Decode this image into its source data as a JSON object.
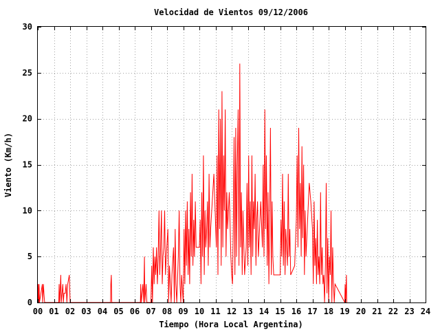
{
  "chart_data": {
    "type": "line",
    "title": "Velocidad de Vientos 09/12/2006",
    "xlabel": "Tiempo (Hora Local Argentina)",
    "ylabel": "Viento (Km/h)",
    "xlim": [
      0,
      24
    ],
    "ylim": [
      0,
      30
    ],
    "x_ticks": [
      "00",
      "01",
      "02",
      "03",
      "04",
      "05",
      "06",
      "07",
      "08",
      "09",
      "10",
      "11",
      "12",
      "13",
      "14",
      "15",
      "16",
      "17",
      "18",
      "19",
      "20",
      "21",
      "22",
      "23",
      "24"
    ],
    "y_ticks": [
      "0",
      "5",
      "10",
      "15",
      "20",
      "25",
      "30"
    ],
    "grid": true,
    "series": [
      {
        "color": "#ff0000",
        "points": [
          [
            0.0,
            0
          ],
          [
            0.02,
            2
          ],
          [
            0.05,
            0
          ],
          [
            0.08,
            2
          ],
          [
            0.1,
            0
          ],
          [
            0.28,
            2
          ],
          [
            0.3,
            0
          ],
          [
            0.35,
            2
          ],
          [
            0.38,
            1
          ],
          [
            0.42,
            0
          ],
          [
            1.3,
            0
          ],
          [
            1.32,
            2
          ],
          [
            1.35,
            0
          ],
          [
            1.4,
            2
          ],
          [
            1.42,
            3
          ],
          [
            1.45,
            0
          ],
          [
            1.55,
            2
          ],
          [
            1.58,
            0
          ],
          [
            1.62,
            1
          ],
          [
            1.7,
            1
          ],
          [
            1.75,
            2
          ],
          [
            1.8,
            0
          ],
          [
            1.85,
            2
          ],
          [
            1.95,
            3
          ],
          [
            2.0,
            0
          ],
          [
            4.5,
            0
          ],
          [
            4.52,
            2
          ],
          [
            4.55,
            3
          ],
          [
            4.58,
            0
          ],
          [
            6.35,
            0
          ],
          [
            6.37,
            2
          ],
          [
            6.4,
            0
          ],
          [
            6.5,
            2
          ],
          [
            6.55,
            0
          ],
          [
            6.6,
            5
          ],
          [
            6.62,
            0
          ],
          [
            6.7,
            2
          ],
          [
            6.75,
            0
          ],
          [
            7.0,
            0
          ],
          [
            7.05,
            4
          ],
          [
            7.1,
            0
          ],
          [
            7.15,
            6
          ],
          [
            7.2,
            2
          ],
          [
            7.25,
            5
          ],
          [
            7.3,
            3
          ],
          [
            7.35,
            6
          ],
          [
            7.4,
            2
          ],
          [
            7.45,
            5
          ],
          [
            7.5,
            10
          ],
          [
            7.55,
            3
          ],
          [
            7.6,
            6
          ],
          [
            7.65,
            10
          ],
          [
            7.7,
            2
          ],
          [
            7.75,
            5
          ],
          [
            7.8,
            6
          ],
          [
            7.85,
            10
          ],
          [
            7.9,
            3
          ],
          [
            7.95,
            5
          ],
          [
            8.05,
            8
          ],
          [
            8.1,
            0
          ],
          [
            8.15,
            4
          ],
          [
            8.2,
            2
          ],
          [
            8.25,
            0
          ],
          [
            8.3,
            3
          ],
          [
            8.4,
            6
          ],
          [
            8.45,
            0
          ],
          [
            8.5,
            8
          ],
          [
            8.55,
            2
          ],
          [
            8.6,
            0
          ],
          [
            8.7,
            5
          ],
          [
            8.75,
            10
          ],
          [
            8.8,
            2
          ],
          [
            8.85,
            0
          ],
          [
            8.9,
            3
          ],
          [
            9.0,
            0
          ],
          [
            9.05,
            8
          ],
          [
            9.1,
            2
          ],
          [
            9.15,
            10
          ],
          [
            9.2,
            4
          ],
          [
            9.25,
            11
          ],
          [
            9.3,
            3
          ],
          [
            9.35,
            8
          ],
          [
            9.4,
            2
          ],
          [
            9.45,
            12
          ],
          [
            9.5,
            5
          ],
          [
            9.55,
            14
          ],
          [
            9.6,
            4
          ],
          [
            9.65,
            9
          ],
          [
            9.7,
            5
          ],
          [
            9.75,
            11
          ],
          [
            9.8,
            6
          ],
          [
            10.0,
            6
          ],
          [
            10.05,
            9
          ],
          [
            10.1,
            2
          ],
          [
            10.15,
            12
          ],
          [
            10.2,
            5
          ],
          [
            10.25,
            16
          ],
          [
            10.3,
            3
          ],
          [
            10.35,
            10
          ],
          [
            10.4,
            6
          ],
          [
            10.45,
            8
          ],
          [
            10.5,
            11
          ],
          [
            10.55,
            4
          ],
          [
            10.6,
            14
          ],
          [
            10.65,
            6
          ],
          [
            10.7,
            8
          ],
          [
            10.9,
            14
          ],
          [
            11.05,
            6
          ],
          [
            11.1,
            16
          ],
          [
            11.15,
            3
          ],
          [
            11.2,
            21
          ],
          [
            11.25,
            8
          ],
          [
            11.3,
            20
          ],
          [
            11.35,
            4
          ],
          [
            11.4,
            23
          ],
          [
            11.45,
            6
          ],
          [
            11.5,
            16
          ],
          [
            11.55,
            10
          ],
          [
            11.6,
            21
          ],
          [
            11.65,
            5
          ],
          [
            11.7,
            12
          ],
          [
            11.75,
            8
          ],
          [
            11.85,
            12
          ],
          [
            11.95,
            5
          ],
          [
            12.0,
            3
          ],
          [
            12.05,
            2
          ],
          [
            12.1,
            8
          ],
          [
            12.15,
            18
          ],
          [
            12.2,
            3
          ],
          [
            12.25,
            19
          ],
          [
            12.3,
            5
          ],
          [
            12.35,
            15
          ],
          [
            12.4,
            21
          ],
          [
            12.45,
            4
          ],
          [
            12.5,
            26
          ],
          [
            12.55,
            6
          ],
          [
            12.6,
            12
          ],
          [
            12.65,
            3
          ],
          [
            12.7,
            10
          ],
          [
            12.8,
            3
          ],
          [
            12.9,
            6
          ],
          [
            12.95,
            13
          ],
          [
            13.0,
            4
          ],
          [
            13.05,
            16
          ],
          [
            13.1,
            6
          ],
          [
            13.15,
            11
          ],
          [
            13.2,
            3
          ],
          [
            13.25,
            16
          ],
          [
            13.3,
            5
          ],
          [
            13.35,
            11
          ],
          [
            13.4,
            8
          ],
          [
            13.45,
            14
          ],
          [
            13.5,
            4
          ],
          [
            13.55,
            9
          ],
          [
            13.6,
            11
          ],
          [
            13.65,
            5
          ],
          [
            13.8,
            11
          ],
          [
            13.9,
            6
          ],
          [
            13.95,
            15
          ],
          [
            14.0,
            5
          ],
          [
            14.05,
            21
          ],
          [
            14.1,
            8
          ],
          [
            14.15,
            16
          ],
          [
            14.2,
            4
          ],
          [
            14.25,
            12
          ],
          [
            14.3,
            2
          ],
          [
            14.35,
            9
          ],
          [
            14.4,
            19
          ],
          [
            14.45,
            3
          ],
          [
            14.5,
            11
          ],
          [
            14.55,
            5
          ],
          [
            14.6,
            3
          ],
          [
            15.0,
            3
          ],
          [
            15.05,
            9
          ],
          [
            15.1,
            5
          ],
          [
            15.15,
            14
          ],
          [
            15.2,
            4
          ],
          [
            15.25,
            11
          ],
          [
            15.3,
            3
          ],
          [
            15.35,
            8
          ],
          [
            15.4,
            6
          ],
          [
            15.45,
            4
          ],
          [
            15.5,
            14
          ],
          [
            15.55,
            5
          ],
          [
            15.6,
            8
          ],
          [
            15.65,
            3
          ],
          [
            15.9,
            4
          ],
          [
            16.0,
            9
          ],
          [
            16.05,
            16
          ],
          [
            16.1,
            6
          ],
          [
            16.15,
            19
          ],
          [
            16.2,
            8
          ],
          [
            16.25,
            13
          ],
          [
            16.3,
            5
          ],
          [
            16.35,
            17
          ],
          [
            16.4,
            7
          ],
          [
            16.45,
            15
          ],
          [
            16.5,
            3
          ],
          [
            16.55,
            10
          ],
          [
            16.6,
            5
          ],
          [
            16.8,
            13
          ],
          [
            16.9,
            11
          ],
          [
            17.0,
            8
          ],
          [
            17.05,
            2
          ],
          [
            17.1,
            11
          ],
          [
            17.15,
            4
          ],
          [
            17.2,
            7
          ],
          [
            17.25,
            2
          ],
          [
            17.3,
            9
          ],
          [
            17.35,
            3
          ],
          [
            17.4,
            5
          ],
          [
            17.45,
            2
          ],
          [
            17.5,
            12
          ],
          [
            17.55,
            3
          ],
          [
            17.6,
            6
          ],
          [
            17.65,
            2
          ],
          [
            17.7,
            3
          ],
          [
            17.75,
            0
          ],
          [
            17.8,
            4
          ],
          [
            17.85,
            13
          ],
          [
            17.9,
            1
          ],
          [
            17.95,
            7
          ],
          [
            18.0,
            0
          ],
          [
            18.05,
            5
          ],
          [
            18.1,
            3
          ],
          [
            18.15,
            10
          ],
          [
            18.2,
            0
          ],
          [
            18.25,
            6
          ],
          [
            18.3,
            2
          ],
          [
            18.35,
            0
          ],
          [
            18.4,
            2
          ],
          [
            19.0,
            0
          ],
          [
            19.02,
            2
          ],
          [
            19.05,
            0
          ],
          [
            19.1,
            3
          ],
          [
            19.12,
            0
          ]
        ]
      }
    ]
  }
}
